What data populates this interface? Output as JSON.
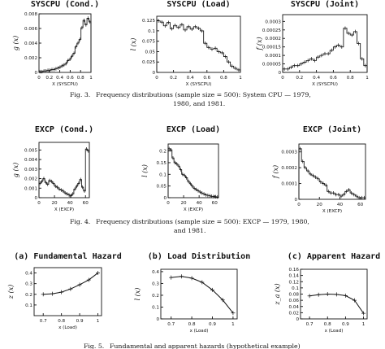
{
  "captions": [
    {
      "label": "Fig. 3.",
      "text": "Frequency distributions (sample size = 500): System CPU — 1979,",
      "text2": "1980, and 1981."
    },
    {
      "label": "Fig. 4.",
      "text": "Frequency distributions (sample size = 500): EXCP — 1979, 1980,",
      "text2": "and 1981."
    },
    {
      "label": "Fig. 5.",
      "text": "Fundamental and apparent hazards (hypothetical example)",
      "text2": ""
    }
  ],
  "chart_data": [
    {
      "type": "histogram",
      "title": "SYSCPU (Cond.)",
      "xlabel": "X (SYSCPU)",
      "ylabel": "g (x)",
      "xlim": [
        0,
        1
      ],
      "ylim": [
        0,
        0.008
      ],
      "xticks": [
        "0",
        "0.2",
        "0.4",
        "0.6",
        "0.8",
        "1"
      ],
      "yticks": [
        "0",
        "0.002",
        "0.004",
        "0.006",
        "0.008"
      ],
      "values": [
        0.0001,
        0.0001,
        0.0002,
        0.0002,
        0.0003,
        0.0003,
        0.0004,
        0.0004,
        0.0005,
        0.0006,
        0.0007,
        0.0009,
        0.001,
        0.0012,
        0.0016,
        0.0018,
        0.0022,
        0.0026,
        0.0035,
        0.004,
        0.0045,
        0.0061,
        0.0071,
        0.0065,
        0.0074,
        0.0069
      ]
    },
    {
      "type": "histogram",
      "title": "SYSCPU (Load)",
      "xlabel": "X (SYSCPU)",
      "ylabel": "l (x)",
      "xlim": [
        0,
        1
      ],
      "ylim": [
        0,
        0.135
      ],
      "xticks": [
        "0",
        "0.2",
        "0.4",
        "0.6",
        "0.8",
        "1"
      ],
      "yticks": [
        "0",
        "0.025",
        "0.05",
        "0.075",
        "0.1",
        "0.125"
      ],
      "values": [
        0.124,
        0.121,
        0.112,
        0.12,
        0.105,
        0.113,
        0.108,
        0.115,
        0.102,
        0.11,
        0.104,
        0.11,
        0.106,
        0.1,
        0.07,
        0.06,
        0.056,
        0.058,
        0.05,
        0.047,
        0.038,
        0.025,
        0.015,
        0.01,
        0.006
      ]
    },
    {
      "type": "histogram",
      "title": "SYSCPU (Joint)",
      "xlabel": "X (SYSCPU)",
      "ylabel": "f (x)",
      "xlim": [
        0,
        1
      ],
      "ylim": [
        0,
        0.00034
      ],
      "xticks": [
        "0",
        "0.2",
        "0.4",
        "0.6",
        "0.8",
        "1"
      ],
      "yticks": [
        "0",
        "0.00005",
        "0.0001",
        "0.00015",
        "0.0002",
        "0.00025",
        "0.0003"
      ],
      "values": [
        2e-05,
        2e-05,
        3e-05,
        4e-05,
        4e-05,
        5e-05,
        6e-05,
        7e-05,
        8e-05,
        7e-05,
        9e-05,
        0.0001,
        0.00011,
        0.00011,
        0.00013,
        0.00015,
        0.00016,
        0.00015,
        0.00026,
        0.00023,
        0.00022,
        0.00024,
        0.00017,
        8e-05,
        4e-05
      ]
    },
    {
      "type": "histogram",
      "title": "EXCP (Cond.)",
      "xlabel": "X (EXCP)",
      "ylabel": "g (x)",
      "xlim": [
        0,
        65
      ],
      "ylim": [
        0,
        0.0058
      ],
      "xticks": [
        "0",
        "20",
        "40",
        "60"
      ],
      "yticks": [
        "0",
        "0.001",
        "0.002",
        "0.003",
        "0.004",
        "0.005"
      ],
      "values": [
        0.0015,
        0.0017,
        0.002,
        0.0016,
        0.0014,
        0.0018,
        0.0017,
        0.0015,
        0.0012,
        0.0011,
        0.0009,
        0.0008,
        0.0007,
        0.0005,
        0.0004,
        0.0003,
        0.0002,
        0.0004,
        0.0009,
        0.0012,
        0.0015,
        0.0019,
        0.0011,
        0.0007,
        0.0051,
        0.0049
      ]
    },
    {
      "type": "histogram",
      "title": "EXCP (Load)",
      "xlabel": "X (EXCP)",
      "ylabel": "l (x)",
      "xlim": [
        0,
        65
      ],
      "ylim": [
        0,
        0.23
      ],
      "xticks": [
        "0",
        "20",
        "40",
        "60"
      ],
      "yticks": [
        "0",
        "0.05",
        "0.1",
        "0.15",
        "0.2"
      ],
      "values": [
        0.21,
        0.205,
        0.17,
        0.15,
        0.145,
        0.135,
        0.12,
        0.1,
        0.095,
        0.085,
        0.07,
        0.06,
        0.05,
        0.04,
        0.035,
        0.03,
        0.024,
        0.02,
        0.016,
        0.012,
        0.01,
        0.008,
        0.006,
        0.005,
        0.004,
        0.003
      ]
    },
    {
      "type": "histogram",
      "title": "EXCP (Joint)",
      "xlabel": "X (EXCP)",
      "ylabel": "f (x)",
      "xlim": [
        0,
        65
      ],
      "ylim": [
        0,
        0.00035
      ],
      "xticks": [
        "0",
        "20",
        "40",
        "60"
      ],
      "yticks": [
        "0",
        "0.0001",
        "0.0002",
        "0.0003"
      ],
      "values": [
        0.00032,
        0.00024,
        0.0002,
        0.00018,
        0.00016,
        0.00015,
        0.00014,
        0.00013,
        0.00011,
        0.0001,
        9e-05,
        5e-05,
        4e-05,
        4e-05,
        3e-05,
        3e-05,
        2e-05,
        3e-05,
        5e-05,
        6e-05,
        4e-05,
        3e-05,
        2e-05,
        1e-05,
        1e-05,
        1e-05
      ]
    },
    {
      "type": "line",
      "title": "(a) Fundamental Hazard",
      "xlabel": "x (Load)",
      "ylabel": "z (x)",
      "xlim": [
        0.65,
        1.02
      ],
      "ylim": [
        0,
        0.45
      ],
      "xticks": [
        "0.7",
        "0.8",
        "0.9",
        "1"
      ],
      "yticks": [
        "0.1",
        "0.2",
        "0.3",
        "0.4"
      ],
      "x": [
        0.7,
        0.75,
        0.8,
        0.85,
        0.9,
        0.95,
        1.0
      ],
      "y": [
        0.2,
        0.205,
        0.22,
        0.25,
        0.29,
        0.335,
        0.4
      ]
    },
    {
      "type": "line",
      "title": "(b) Load Distribution",
      "xlabel": "x (Load)",
      "ylabel": "l (x)",
      "xlim": [
        0.65,
        1.02
      ],
      "ylim": [
        0,
        0.42
      ],
      "xticks": [
        "0.7",
        "0.8",
        "0.9",
        "1"
      ],
      "yticks": [
        "0",
        "0.1",
        "0.2",
        "0.3",
        "0.4"
      ],
      "x": [
        0.7,
        0.75,
        0.8,
        0.85,
        0.9,
        0.95,
        1.0
      ],
      "y": [
        0.35,
        0.36,
        0.345,
        0.31,
        0.245,
        0.16,
        0.05
      ]
    },
    {
      "type": "line",
      "title": "(c) Apparent Hazard",
      "xlabel": "x (Load)",
      "ylabel": "z_a (x)",
      "xlim": [
        0.65,
        1.02
      ],
      "ylim": [
        0,
        0.16
      ],
      "xticks": [
        "0.7",
        "0.8",
        "0.9",
        "1"
      ],
      "yticks": [
        "0",
        "0.02",
        "0.04",
        "0.06",
        "0.08",
        "0.1",
        "0.12",
        "0.14",
        "0.16"
      ],
      "x": [
        0.7,
        0.75,
        0.8,
        0.85,
        0.9,
        0.95,
        1.0
      ],
      "y": [
        0.074,
        0.078,
        0.08,
        0.079,
        0.075,
        0.06,
        0.018
      ]
    }
  ]
}
